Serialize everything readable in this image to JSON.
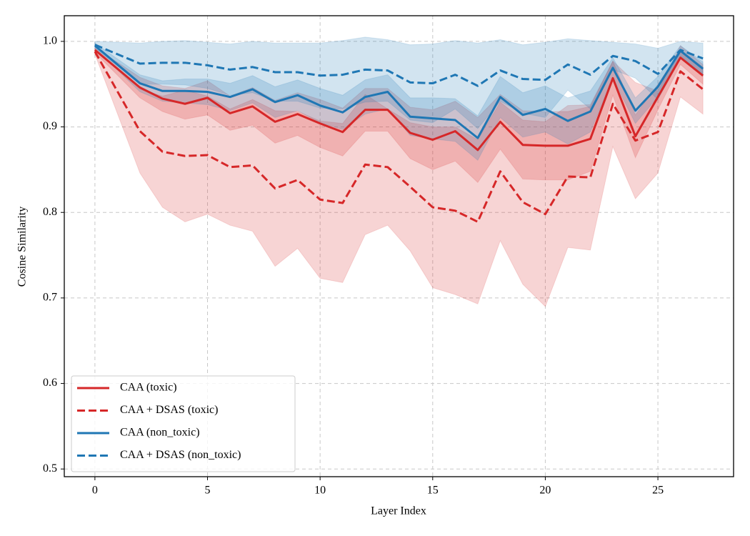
{
  "chart_data": {
    "type": "line",
    "xlabel": "Layer Index",
    "ylabel": "Cosine Similarity",
    "x": [
      0,
      2,
      3,
      4,
      5,
      6,
      7,
      8,
      9,
      10,
      11,
      12,
      13,
      14,
      15,
      16,
      17,
      18,
      19,
      20,
      21,
      22,
      23,
      24,
      25,
      26,
      27
    ],
    "series": [
      {
        "name": "CAA (toxic)",
        "color": "#d62728",
        "linestyle": "solid",
        "values": [
          0.99,
          0.946,
          0.933,
          0.927,
          0.934,
          0.916,
          0.924,
          0.906,
          0.915,
          0.904,
          0.894,
          0.92,
          0.92,
          0.893,
          0.885,
          0.895,
          0.873,
          0.906,
          0.879,
          0.878,
          0.878,
          0.886,
          0.957,
          0.889,
          0.935,
          0.981,
          0.96
        ],
        "errors": [
          0.003,
          0.012,
          0.015,
          0.018,
          0.02,
          0.02,
          0.022,
          0.025,
          0.025,
          0.028,
          0.028,
          0.025,
          0.025,
          0.03,
          0.035,
          0.035,
          0.038,
          0.032,
          0.04,
          0.04,
          0.04,
          0.038,
          0.02,
          0.025,
          0.015,
          0.008,
          0.01
        ]
      },
      {
        "name": "CAA + DSAS (toxic)",
        "color": "#d62728",
        "linestyle": "dashed",
        "values": [
          0.988,
          0.895,
          0.871,
          0.866,
          0.867,
          0.853,
          0.855,
          0.828,
          0.838,
          0.815,
          0.811,
          0.856,
          0.853,
          0.83,
          0.806,
          0.802,
          0.789,
          0.848,
          0.812,
          0.798,
          0.842,
          0.841,
          0.927,
          0.884,
          0.894,
          0.965,
          0.944
        ],
        "errors": [
          0.003,
          0.049,
          0.065,
          0.077,
          0.069,
          0.068,
          0.077,
          0.091,
          0.08,
          0.092,
          0.093,
          0.082,
          0.068,
          0.075,
          0.094,
          0.098,
          0.096,
          0.081,
          0.096,
          0.108,
          0.083,
          0.085,
          0.05,
          0.068,
          0.048,
          0.03,
          0.029
        ]
      },
      {
        "name": "CAA (non_toxic)",
        "color": "#1f77b4",
        "linestyle": "solid",
        "values": [
          0.995,
          0.951,
          0.942,
          0.942,
          0.941,
          0.935,
          0.944,
          0.929,
          0.937,
          0.925,
          0.917,
          0.935,
          0.941,
          0.912,
          0.91,
          0.908,
          0.887,
          0.935,
          0.914,
          0.921,
          0.907,
          0.918,
          0.969,
          0.919,
          0.947,
          0.989,
          0.968
        ],
        "errors": [
          0.003,
          0.01,
          0.012,
          0.014,
          0.015,
          0.016,
          0.016,
          0.018,
          0.018,
          0.02,
          0.02,
          0.02,
          0.02,
          0.022,
          0.024,
          0.025,
          0.026,
          0.024,
          0.026,
          0.027,
          0.027,
          0.024,
          0.012,
          0.015,
          0.012,
          0.006,
          0.008
        ]
      },
      {
        "name": "CAA + DSAS (non_toxic)",
        "color": "#1f77b4",
        "linestyle": "dashed",
        "values": [
          0.996,
          0.974,
          0.975,
          0.975,
          0.972,
          0.967,
          0.97,
          0.964,
          0.964,
          0.96,
          0.961,
          0.967,
          0.966,
          0.952,
          0.951,
          0.961,
          0.948,
          0.966,
          0.956,
          0.955,
          0.973,
          0.961,
          0.983,
          0.977,
          0.962,
          0.99,
          0.98
        ],
        "errors": [
          0.004,
          0.024,
          0.025,
          0.026,
          0.027,
          0.03,
          0.03,
          0.034,
          0.034,
          0.038,
          0.04,
          0.038,
          0.036,
          0.044,
          0.046,
          0.04,
          0.05,
          0.036,
          0.04,
          0.044,
          0.03,
          0.04,
          0.016,
          0.02,
          0.03,
          0.01,
          0.018
        ]
      }
    ],
    "xlim": [
      -1.36,
      28.36
    ],
    "ylim": [
      0.491,
      1.03
    ],
    "xticks": [
      0,
      5,
      10,
      15,
      20,
      25
    ],
    "yticks": [
      0.5,
      0.6,
      0.7,
      0.8,
      0.9,
      {
        "value": 1,
        "label": "1.0"
      }
    ],
    "grid": true,
    "legend": "lower left"
  }
}
